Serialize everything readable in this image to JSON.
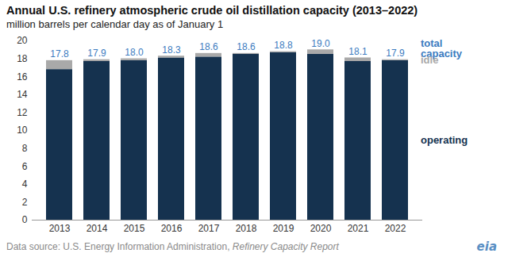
{
  "chart_data": {
    "type": "bar",
    "stacked": true,
    "title": "Annual U.S. refinery atmospheric crude oil distillation capacity (2013–2022)",
    "subtitle": "million barrels per calendar day as of January 1",
    "source": "Data source: U.S. Energy Information Administration,",
    "source_report": "Refinery Capacity Report",
    "logo": "eia",
    "categories": [
      "2013",
      "2014",
      "2015",
      "2016",
      "2017",
      "2018",
      "2019",
      "2020",
      "2021",
      "2022"
    ],
    "series": [
      {
        "name": "operating",
        "color": "#15324f",
        "values": [
          16.8,
          17.7,
          17.8,
          18.1,
          18.2,
          18.5,
          18.7,
          18.5,
          17.7,
          17.8
        ]
      },
      {
        "name": "idle",
        "color": "#a9a9a9",
        "values": [
          1.0,
          0.2,
          0.2,
          0.2,
          0.4,
          0.1,
          0.1,
          0.5,
          0.4,
          0.1
        ]
      }
    ],
    "totals": {
      "name": "total capacity",
      "color": "#3b7bbf",
      "values": [
        17.8,
        17.9,
        18.0,
        18.3,
        18.6,
        18.6,
        18.8,
        19.0,
        18.1,
        17.9
      ],
      "value_labels": [
        "17.8",
        "17.9",
        "18.0",
        "18.3",
        "18.6",
        "18.6",
        "18.8",
        "19.0",
        "18.1",
        "17.9"
      ]
    },
    "ylim": [
      0,
      20
    ],
    "yticks": [
      0,
      2,
      4,
      6,
      8,
      10,
      12,
      14,
      16,
      18,
      20
    ],
    "grid": false
  }
}
